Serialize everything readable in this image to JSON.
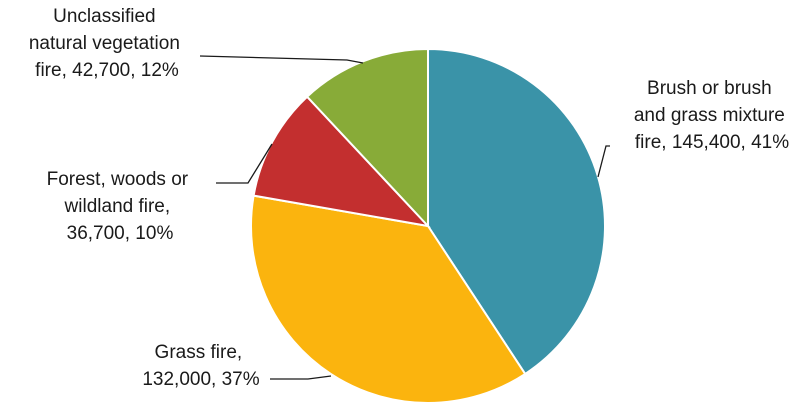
{
  "chart_data": {
    "type": "pie",
    "title": "",
    "slices": [
      {
        "label": "Brush or brush and grass mixture fire",
        "value": 145400,
        "percent": 41,
        "color": "#3a93a8",
        "label_lines": [
          "Brush or brush",
          "and grass mixture",
          "fire, 145,400, 41%"
        ]
      },
      {
        "label": "Grass fire",
        "value": 132000,
        "percent": 37,
        "color": "#fbb40e",
        "label_lines": [
          "Grass fire,",
          "132,000, 37%"
        ]
      },
      {
        "label": "Forest, woods or wildland fire",
        "value": 36700,
        "percent": 10,
        "color": "#c32f2f",
        "label_lines": [
          "Forest, woods or",
          "wildland fire,",
          "36,700, 10%"
        ]
      },
      {
        "label": "Unclassified natural vegetation fire",
        "value": 42700,
        "percent": 12,
        "color": "#88ab38",
        "label_lines": [
          "Unclassified",
          "natural vegetation",
          "fire, 42,700, 12%"
        ]
      }
    ],
    "start_angle_deg": 0,
    "direction": "clockwise",
    "legend": "none",
    "data_labels": "outside with leader lines"
  }
}
